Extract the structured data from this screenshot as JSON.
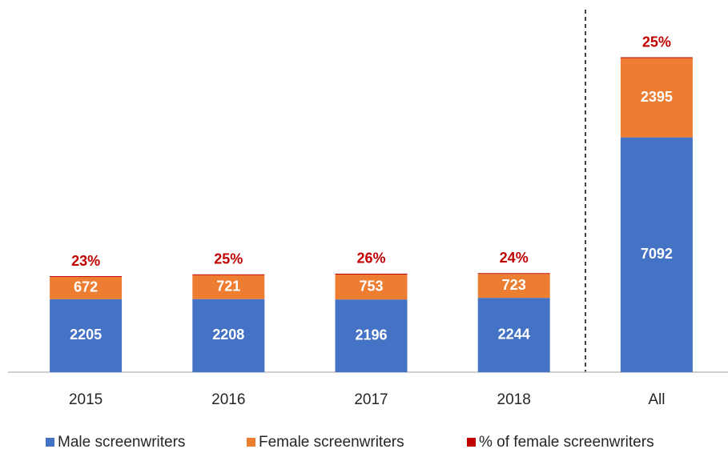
{
  "chart_data": {
    "type": "stacked_bar",
    "categories": [
      "2015",
      "2016",
      "2017",
      "2018",
      "All"
    ],
    "series": [
      {
        "name": "Male screenwriters",
        "color": "#4472c4",
        "values": [
          2205,
          2208,
          2196,
          2244,
          7092
        ]
      },
      {
        "name": "Female screenwriters",
        "color": "#ed7d31",
        "values": [
          672,
          721,
          753,
          723,
          2395
        ]
      },
      {
        "name": "% of female screenwriters",
        "color": "#c00000",
        "values": [
          23,
          25,
          26,
          24,
          25
        ],
        "value_labels": [
          "23%",
          "25%",
          "26%",
          "24%",
          "25%"
        ]
      }
    ],
    "ylim": [
      0,
      11000
    ],
    "legend": "bottom"
  }
}
